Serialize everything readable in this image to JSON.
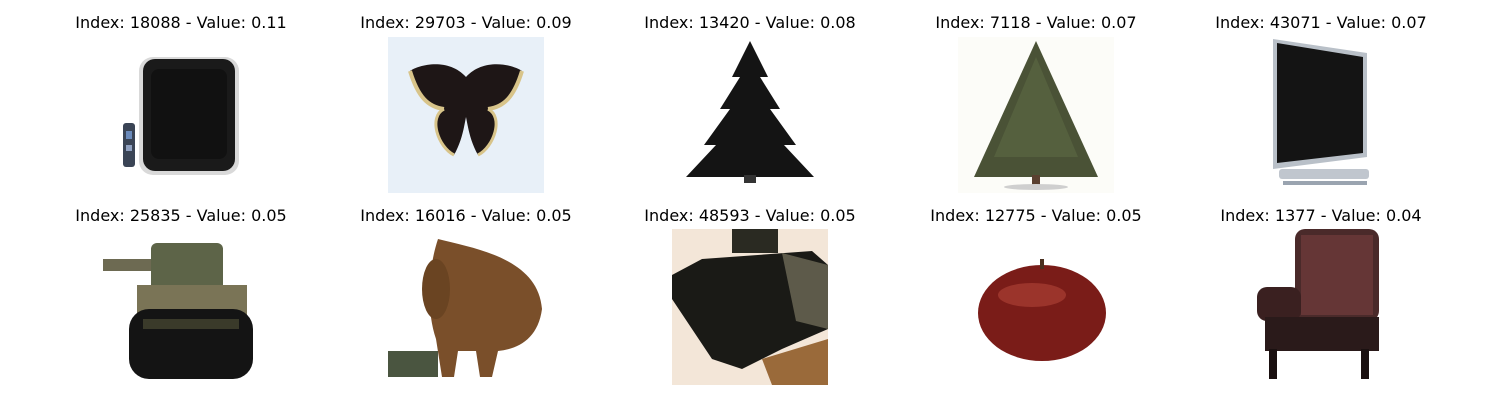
{
  "grid": {
    "items": [
      {
        "title": "Index: 18088 - Value: 0.11",
        "icon": "television-image"
      },
      {
        "title": "Index: 29703 - Value: 0.09",
        "icon": "butterfly-image"
      },
      {
        "title": "Index: 13420 - Value: 0.08",
        "icon": "dark-pine-tree-image"
      },
      {
        "title": "Index: 7118 - Value: 0.07",
        "icon": "pine-tree-image"
      },
      {
        "title": "Index: 43071 - Value: 0.07",
        "icon": "flat-monitor-image"
      },
      {
        "title": "Index: 25835 - Value: 0.05",
        "icon": "tank-image"
      },
      {
        "title": "Index: 16016 - Value: 0.05",
        "icon": "bison-image"
      },
      {
        "title": "Index: 48593 - Value: 0.05",
        "icon": "tank-closeup-image"
      },
      {
        "title": "Index: 12775 - Value: 0.05",
        "icon": "apple-image"
      },
      {
        "title": "Index: 1377 - Value: 0.04",
        "icon": "armchair-image"
      }
    ]
  }
}
